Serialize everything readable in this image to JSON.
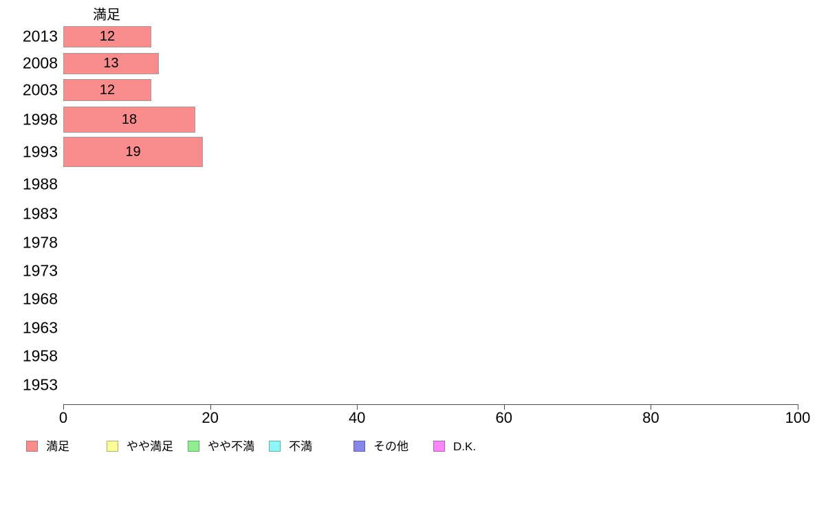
{
  "chart_data": {
    "type": "bar",
    "orientation": "horizontal",
    "title": "満足",
    "categories": [
      "2013",
      "2008",
      "2003",
      "1998",
      "1993",
      "1988",
      "1983",
      "1978",
      "1973",
      "1968",
      "1963",
      "1958",
      "1953"
    ],
    "values": [
      12,
      13,
      12,
      18,
      19,
      null,
      null,
      null,
      null,
      null,
      null,
      null,
      null
    ],
    "value_labels": [
      "12",
      "13",
      "12",
      "18",
      "19",
      "",
      "",
      "",
      "",
      "",
      "",
      "",
      ""
    ],
    "xlim": [
      0,
      100
    ],
    "x_ticks": [
      0,
      20,
      40,
      60,
      80,
      100
    ],
    "x_tick_labels": [
      "0",
      "20",
      "40",
      "60",
      "80",
      "100"
    ],
    "grid": false,
    "background_color": "#ffffff",
    "text_color": "#000000",
    "bar_fill": "#F98C8C",
    "bar_border": "#A89898",
    "legend_position": "bottom",
    "legend": [
      {
        "label": "満足",
        "fill": "#F98C8C",
        "border": "#AB7373"
      },
      {
        "label": "やや満足",
        "fill": "#FCFC99",
        "border": "#B0B06A"
      },
      {
        "label": "やや不満",
        "fill": "#90EE90",
        "border": "#5FAE5F"
      },
      {
        "label": "不満",
        "fill": "#8DF7F7",
        "border": "#62ADAD"
      },
      {
        "label": "その他",
        "fill": "#8787E8",
        "border": "#5F5FAE"
      },
      {
        "label": "D.K.",
        "fill": "#FA87FA",
        "border": "#AE62AE"
      }
    ]
  }
}
